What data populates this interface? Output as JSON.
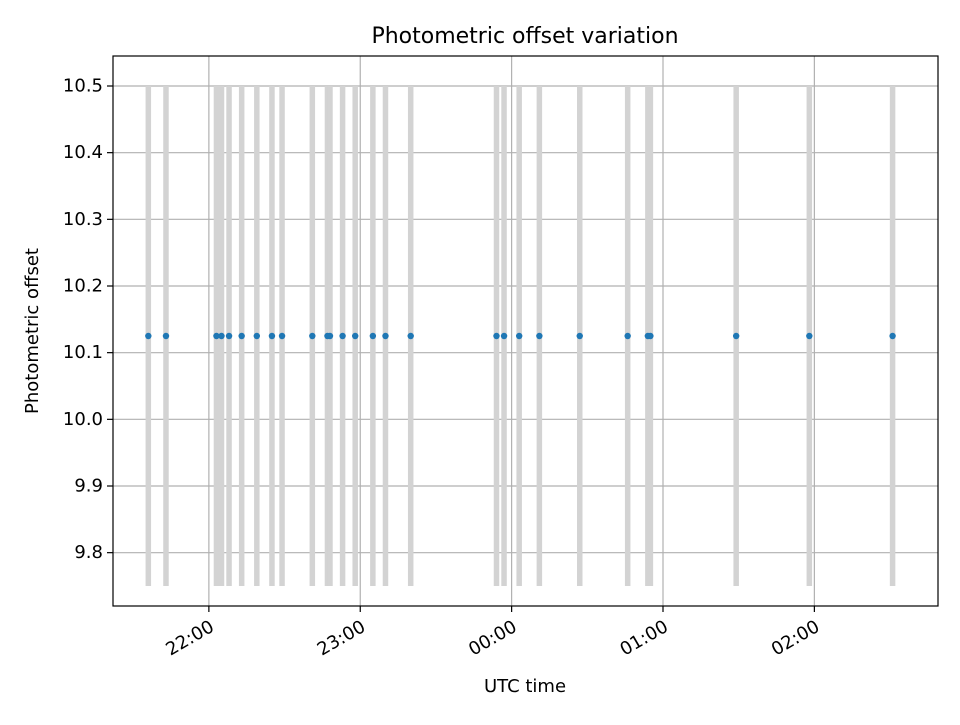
{
  "chart_data": {
    "type": "scatter",
    "title": "Photometric offset variation",
    "xlabel": "UTC time",
    "ylabel": "Photometric offset",
    "x_axis_kind": "time",
    "xlim": [
      "21:22",
      "02:49"
    ],
    "ylim": [
      9.72,
      10.545
    ],
    "x_ticks": [
      {
        "time": "22:00",
        "label": "22:00"
      },
      {
        "time": "23:00",
        "label": "23:00"
      },
      {
        "time": "00:00",
        "label": "00:00"
      },
      {
        "time": "01:00",
        "label": "01:00"
      },
      {
        "time": "02:00",
        "label": "02:00"
      }
    ],
    "y_ticks": [
      {
        "value": 9.8,
        "label": "9.8"
      },
      {
        "value": 9.9,
        "label": "9.9"
      },
      {
        "value": 10.0,
        "label": "10.0"
      },
      {
        "value": 10.1,
        "label": "10.1"
      },
      {
        "value": 10.2,
        "label": "10.2"
      },
      {
        "value": 10.3,
        "label": "10.3"
      },
      {
        "value": 10.4,
        "label": "10.4"
      },
      {
        "value": 10.5,
        "label": "10.5"
      }
    ],
    "grid": true,
    "band_range": [
      9.75,
      10.5
    ],
    "band_color": "#d3d3d3",
    "point_color": "#1f77b4",
    "points": [
      {
        "time": "21:36",
        "value": 10.125
      },
      {
        "time": "21:43",
        "value": 10.125
      },
      {
        "time": "22:03",
        "value": 10.125
      },
      {
        "time": "22:05",
        "value": 10.125
      },
      {
        "time": "22:08",
        "value": 10.125
      },
      {
        "time": "22:13",
        "value": 10.125
      },
      {
        "time": "22:19",
        "value": 10.125
      },
      {
        "time": "22:25",
        "value": 10.125
      },
      {
        "time": "22:29",
        "value": 10.125
      },
      {
        "time": "22:41",
        "value": 10.125
      },
      {
        "time": "22:47",
        "value": 10.125
      },
      {
        "time": "22:48",
        "value": 10.125
      },
      {
        "time": "22:53",
        "value": 10.125
      },
      {
        "time": "22:58",
        "value": 10.125
      },
      {
        "time": "23:05",
        "value": 10.125
      },
      {
        "time": "23:10",
        "value": 10.125
      },
      {
        "time": "23:20",
        "value": 10.125
      },
      {
        "time": "23:54",
        "value": 10.125
      },
      {
        "time": "23:57",
        "value": 10.125
      },
      {
        "time": "00:03",
        "value": 10.125
      },
      {
        "time": "00:11",
        "value": 10.125
      },
      {
        "time": "00:27",
        "value": 10.125
      },
      {
        "time": "00:46",
        "value": 10.125
      },
      {
        "time": "00:54",
        "value": 10.125
      },
      {
        "time": "00:55",
        "value": 10.125
      },
      {
        "time": "01:29",
        "value": 10.125
      },
      {
        "time": "01:58",
        "value": 10.125
      },
      {
        "time": "02:31",
        "value": 10.125
      }
    ]
  }
}
